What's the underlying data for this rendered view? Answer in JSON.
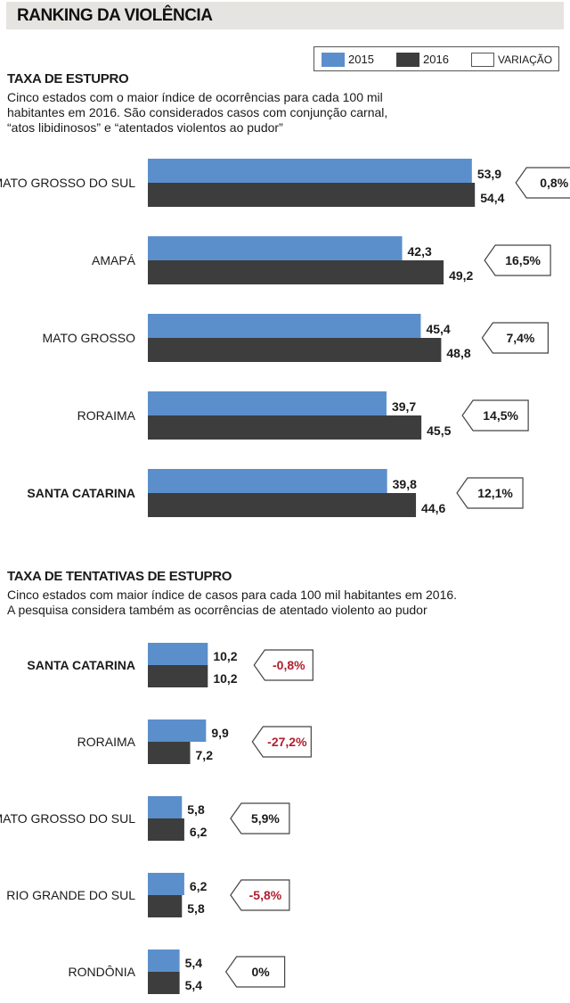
{
  "header": {
    "title": "RANKING DA VIOLÊNCIA"
  },
  "legend": {
    "items": [
      {
        "label": "2015",
        "color": "#5b8fcc"
      },
      {
        "label": "2016",
        "color": "#3d3d3d"
      },
      {
        "label": "VARIAÇÃO",
        "color": "#ffffff"
      }
    ]
  },
  "colors": {
    "y2015": "#5b8fcc",
    "y2016": "#3d3d3d",
    "negative": "#b01e2e"
  },
  "chart_data": [
    {
      "type": "bar",
      "orientation": "horizontal",
      "title": "TAXA DE ESTUPRO",
      "description_lines": [
        "Cinco estados com o maior índice de ocorrências para cada 100 mil",
        "habitantes em 2016.  São considerados casos com conjunção carnal,",
        "“atos libidinosos” e “atentados violentos ao pudor”"
      ],
      "categories": [
        "MATO GROSSO DO SUL",
        "AMAPÁ",
        "MATO GROSSO",
        "RORAIMA",
        "SANTA CATARINA"
      ],
      "highlight": [
        false,
        false,
        false,
        false,
        true
      ],
      "series": [
        {
          "name": "2015",
          "values": [
            53.9,
            42.3,
            45.4,
            39.7,
            39.8
          ],
          "labels": [
            "53,9",
            "42,3",
            "45,4",
            "39,7",
            "39,8"
          ]
        },
        {
          "name": "2016",
          "values": [
            54.4,
            49.2,
            48.8,
            45.5,
            44.6
          ],
          "labels": [
            "54,4",
            "49,2",
            "48,8",
            "45,5",
            "44,6"
          ]
        }
      ],
      "variation": [
        "0,8%",
        "16,5%",
        "7,4%",
        "14,5%",
        "12,1%"
      ],
      "variation_negative": [
        false,
        false,
        false,
        false,
        false
      ]
    },
    {
      "type": "bar",
      "orientation": "horizontal",
      "title": "TAXA DE TENTATIVAS DE ESTUPRO",
      "description_lines": [
        "Cinco estados com maior índice de casos para cada 100 mil habitantes em 2016.",
        "A pesquisa considera também as ocorrências de atentado violento ao pudor"
      ],
      "categories": [
        "SANTA CATARINA",
        "RORAIMA",
        "MATO GROSSO DO SUL",
        "RIO GRANDE DO SUL",
        "RONDÔNIA"
      ],
      "highlight": [
        true,
        false,
        false,
        false,
        false
      ],
      "series": [
        {
          "name": "2015",
          "values": [
            10.2,
            9.9,
            5.8,
            6.2,
            5.4
          ],
          "labels": [
            "10,2",
            "9,9",
            "5,8",
            "6,2",
            "5,4"
          ]
        },
        {
          "name": "2016",
          "values": [
            10.2,
            7.2,
            6.2,
            5.8,
            5.4
          ],
          "labels": [
            "10,2",
            "7,2",
            "6,2",
            "5,8",
            "5,4"
          ]
        }
      ],
      "variation": [
        "-0,8%",
        "-27,2%",
        "5,9%",
        "-5,8%",
        "0%"
      ],
      "variation_negative": [
        true,
        true,
        false,
        true,
        false
      ]
    }
  ]
}
